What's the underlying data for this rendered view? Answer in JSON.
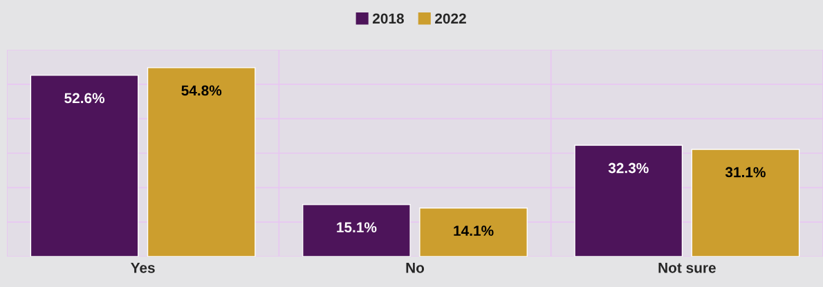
{
  "chart_data": {
    "type": "bar",
    "categories": [
      "Yes",
      "No",
      "Not sure"
    ],
    "series": [
      {
        "name": "2018",
        "color": "#4d145a",
        "values": [
          52.6,
          15.1,
          32.3
        ],
        "value_labels": [
          "52.6%",
          "15.1%",
          "32.3%"
        ]
      },
      {
        "name": "2022",
        "color": "#cc9e2e",
        "values": [
          54.8,
          14.1,
          31.1
        ],
        "value_labels": [
          "54.8%",
          "14.1%",
          "31.1%"
        ]
      }
    ],
    "ylim": [
      0,
      60
    ],
    "yticks": [
      {
        "value": 0,
        "label": null
      },
      {
        "value": 10,
        "label": null
      },
      {
        "value": 20,
        "label": null
      },
      {
        "value": 30,
        "label": null
      },
      {
        "value": 40,
        "label": null
      },
      {
        "value": 50,
        "label": null
      },
      {
        "value": 60,
        "label": null
      }
    ],
    "tick_labels": "x",
    "grid": true,
    "legend": "top"
  }
}
